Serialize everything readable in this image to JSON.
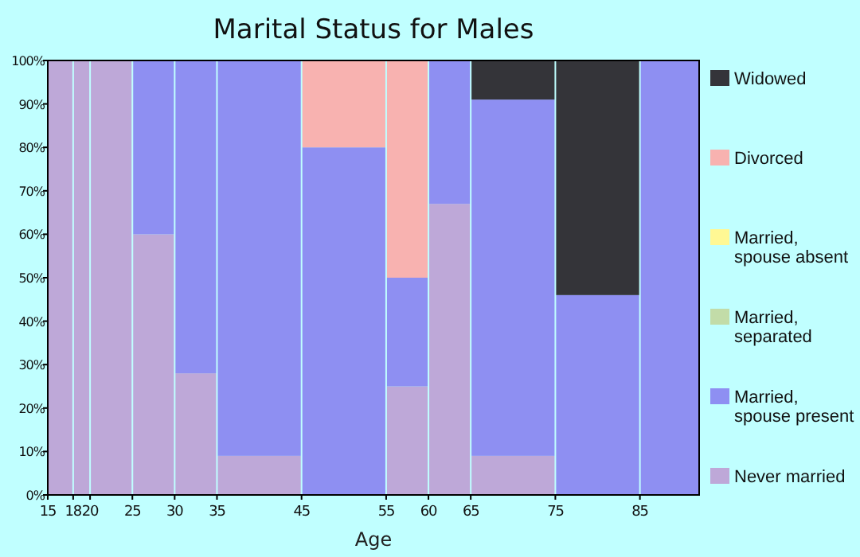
{
  "chart_data": {
    "type": "bar",
    "stacked": true,
    "title": "Marital Status for Males",
    "xlabel": "Age",
    "x": [
      16.5,
      19,
      22.5,
      27.5,
      32.5,
      40,
      50,
      57.5,
      62.5,
      70,
      80,
      88.5
    ],
    "xlim": [
      15,
      92
    ],
    "xticks": [
      15,
      18,
      20,
      25,
      30,
      35,
      45,
      55,
      60,
      65,
      75,
      85
    ],
    "ylim": [
      0,
      100
    ],
    "yticks": [
      {
        "value": 0,
        "label": "0%"
      },
      {
        "value": 10,
        "label": "10%"
      },
      {
        "value": 20,
        "label": "20%"
      },
      {
        "value": 30,
        "label": "30%"
      },
      {
        "value": 40,
        "label": "40%"
      },
      {
        "value": 50,
        "label": "50%"
      },
      {
        "value": 60,
        "label": "60%"
      },
      {
        "value": 70,
        "label": "70%"
      },
      {
        "value": 80,
        "label": "80%"
      },
      {
        "value": 90,
        "label": "90%"
      },
      {
        "value": 100,
        "label": "100%"
      }
    ],
    "legend": "right",
    "grid": false,
    "series": [
      {
        "name": "Never married",
        "color": "#bea8d8",
        "values": [
          100,
          100,
          100,
          60,
          28,
          9,
          0,
          25,
          67,
          9,
          0,
          0
        ]
      },
      {
        "name": "Married, spouse present",
        "color": "#8e8ff2",
        "values": [
          0,
          0,
          0,
          40,
          72,
          91,
          80,
          25,
          33,
          82,
          46,
          100
        ]
      },
      {
        "name": "Married, separated",
        "color": "#c2dca8",
        "values": [
          0,
          0,
          0,
          0,
          0,
          0,
          0,
          0,
          0,
          0,
          0,
          0
        ]
      },
      {
        "name": "Married, spouse absent",
        "color": "#fff894",
        "values": [
          0,
          0,
          0,
          0,
          0,
          0,
          0,
          0,
          0,
          0,
          0,
          0
        ]
      },
      {
        "name": "Divorced",
        "color": "#f8b2b0",
        "values": [
          0,
          0,
          0,
          0,
          0,
          0,
          20,
          50,
          0,
          0,
          0,
          0
        ]
      },
      {
        "name": "Widowed",
        "color": "#343439",
        "values": [
          0,
          0,
          0,
          0,
          0,
          0,
          0,
          0,
          0,
          9,
          54,
          0
        ]
      }
    ]
  }
}
